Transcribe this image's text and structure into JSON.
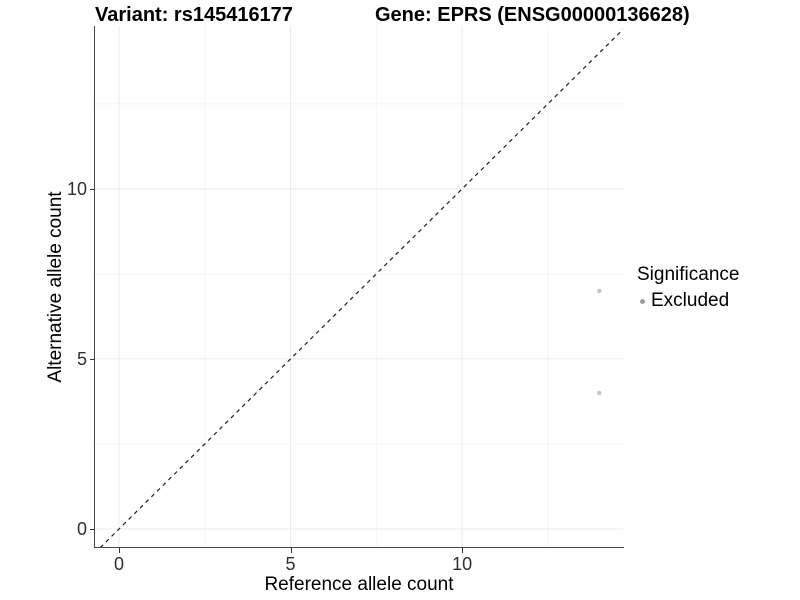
{
  "chart_data": {
    "type": "scatter",
    "title_left": "Variant: rs145416177",
    "title_right": "Gene: EPRS (ENSG00000136628)",
    "xlabel": "Reference allele count",
    "ylabel": "Alternative allele count",
    "xlim": [
      -0.7,
      14.69
    ],
    "ylim": [
      -0.53,
      14.79
    ],
    "x_major_ticks": [
      0,
      5,
      10
    ],
    "y_major_ticks": [
      0,
      5,
      10
    ],
    "x_minor_gridlines": [
      2.5,
      7.5,
      12.5
    ],
    "y_minor_gridlines": [
      2.5,
      7.5,
      12.5
    ],
    "grid": "major and minor gridlines on white background",
    "identity_line": {
      "slope": 1,
      "intercept": 0,
      "style": "dashed",
      "color": "#1f1f1f"
    },
    "series": [
      {
        "name": "Excluded",
        "marker": "circle",
        "color": "#c5c5c5",
        "points": [
          {
            "x": 14,
            "y": 7
          },
          {
            "x": 14,
            "y": 4
          }
        ]
      }
    ],
    "legend": {
      "title": "Significance",
      "position": "right",
      "items": [
        {
          "label": "Excluded",
          "color": "#9c9c9c"
        }
      ]
    }
  },
  "colors": {
    "background": "#ffffff",
    "axis_line": "#474747",
    "tick_mark": "#333333",
    "tick_label": "#303030",
    "grid_major": "#ebebeb",
    "grid_minor": "#f5f5f5"
  }
}
